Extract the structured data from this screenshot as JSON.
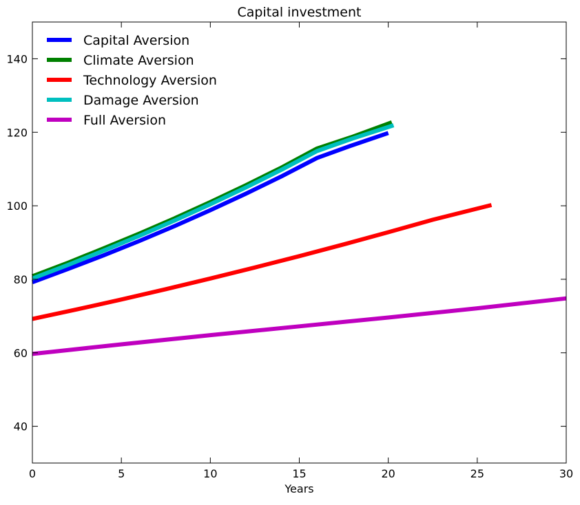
{
  "chart_data": {
    "type": "line",
    "title": "Capital investment",
    "xlabel": "Years",
    "ylabel": "",
    "xlim": [
      0,
      30
    ],
    "ylim": [
      30,
      150
    ],
    "xticks": [
      0,
      5,
      10,
      15,
      20,
      25,
      30
    ],
    "yticks": [
      40,
      60,
      80,
      100,
      120,
      140
    ],
    "grid": false,
    "legend_position": "top-left",
    "series": [
      {
        "name": "Capital Aversion",
        "color": "#0000ff",
        "x": [
          0,
          2,
          4,
          6,
          8,
          10,
          12,
          14,
          16,
          18,
          20
        ],
        "y": [
          79.2,
          82.8,
          86.5,
          90.4,
          94.5,
          98.8,
          103.3,
          108.0,
          113.0,
          116.5,
          119.8
        ]
      },
      {
        "name": "Climate Aversion",
        "color": "#008000",
        "x": [
          0,
          2,
          4,
          6,
          8,
          10,
          12,
          14,
          16,
          18,
          20.2
        ],
        "y": [
          80.8,
          84.5,
          88.4,
          92.4,
          96.6,
          101.0,
          105.6,
          110.4,
          115.6,
          118.8,
          122.7
        ]
      },
      {
        "name": "Technology Aversion",
        "color": "#ff0000",
        "x": [
          0,
          2.5,
          5,
          7.5,
          10,
          12.5,
          15,
          17.5,
          20,
          22.5,
          25.8
        ],
        "y": [
          69.2,
          71.8,
          74.5,
          77.3,
          80.2,
          83.2,
          86.3,
          89.5,
          92.8,
          96.2,
          100.2
        ]
      },
      {
        "name": "Damage Aversion",
        "color": "#00bfbf",
        "x": [
          0,
          2,
          4,
          6,
          8,
          10,
          12,
          14,
          16,
          18,
          20.3
        ],
        "y": [
          80.2,
          83.9,
          87.8,
          91.8,
          96.0,
          100.4,
          105.0,
          109.8,
          114.9,
          118.3,
          121.9
        ]
      },
      {
        "name": "Full Aversion",
        "color": "#bf00bf",
        "x": [
          0,
          5,
          10,
          15,
          20,
          25,
          30
        ],
        "y": [
          59.7,
          62.3,
          64.8,
          67.2,
          69.6,
          72.1,
          74.8
        ]
      }
    ]
  }
}
